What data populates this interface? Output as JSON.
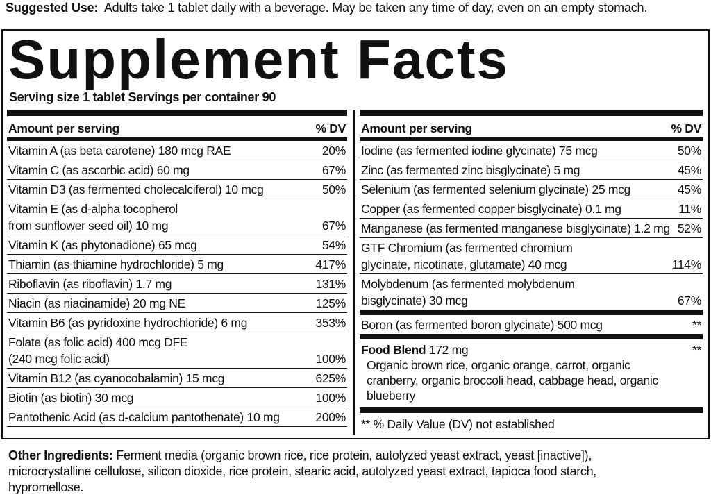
{
  "suggested_use": {
    "label": "Suggested Use:",
    "text": "Adults take 1 tablet daily with a beverage. May be taken any time of day, even on an empty stomach."
  },
  "title": "Supplement Facts",
  "serving": "Serving size 1 tablet  Servings per container 90",
  "left": {
    "header": {
      "amount": "Amount per serving",
      "dv": "% DV"
    },
    "rows": [
      {
        "name": [
          "Vitamin A (as beta carotene) 180 mcg RAE"
        ],
        "dv": "20%"
      },
      {
        "name": [
          "Vitamin C (as ascorbic acid) 60 mg"
        ],
        "dv": "67%"
      },
      {
        "name": [
          "Vitamin D3 (as fermented cholecalciferol) 10 mcg"
        ],
        "dv": "50%"
      },
      {
        "name": [
          "Vitamin E (as d-alpha tocopherol",
          "from sunflower seed oil) 10 mg"
        ],
        "dv": "67%"
      },
      {
        "name": [
          "Vitamin K (as phytonadione) 65 mcg"
        ],
        "dv": "54%"
      },
      {
        "name": [
          "Thiamin (as thiamine hydrochloride) 5 mg"
        ],
        "dv": "417%"
      },
      {
        "name": [
          "Riboflavin (as riboflavin) 1.7 mg"
        ],
        "dv": "131%"
      },
      {
        "name": [
          "Niacin (as niacinamide) 20 mg NE"
        ],
        "dv": "125%"
      },
      {
        "name": [
          "Vitamin B6 (as pyridoxine hydrochloride) 6 mg"
        ],
        "dv": "353%"
      },
      {
        "name": [
          "Folate (as folic acid) 400 mcg DFE",
          "(240 mcg folic acid)"
        ],
        "dv": "100%"
      },
      {
        "name": [
          "Vitamin B12 (as cyanocobalamin) 15 mcg"
        ],
        "dv": "625%"
      },
      {
        "name": [
          "Biotin (as biotin) 30 mcg"
        ],
        "dv": "100%"
      },
      {
        "name": [
          "Pantothenic Acid (as d-calcium pantothenate) 10 mg"
        ],
        "dv": "200%"
      }
    ]
  },
  "right": {
    "header": {
      "amount": "Amount per serving",
      "dv": "% DV"
    },
    "rows": [
      {
        "name": [
          "Iodine (as fermented iodine glycinate) 75 mcg"
        ],
        "dv": "50%"
      },
      {
        "name": [
          "Zinc (as fermented zinc bisglycinate) 5 mg"
        ],
        "dv": "45%"
      },
      {
        "name": [
          "Selenium (as fermented selenium glycinate) 25 mcg"
        ],
        "dv": "45%"
      },
      {
        "name": [
          "Copper (as fermented copper bisglycinate) 0.1 mg"
        ],
        "dv": "11%"
      },
      {
        "name": [
          "Manganese (as fermented manganese bisglycinate) 1.2 mg"
        ],
        "dv": "52%"
      },
      {
        "name": [
          "GTF Chromium (as fermented chromium",
          "glycinate, nicotinate, glutamate) 40 mcg"
        ],
        "dv": "114%"
      },
      {
        "name": [
          "Molybdenum (as fermented molybdenum",
          "bisglycinate) 30 mcg"
        ],
        "dv": "67%"
      }
    ],
    "boron": {
      "name": "Boron (as fermented boron glycinate) 500 mcg",
      "dv": "**"
    },
    "food_blend": {
      "label": "Food Blend",
      "amount": "172 mg",
      "dv": "**",
      "description": [
        "Organic brown rice, organic orange, carrot, organic",
        "cranberry, organic broccoli head, cabbage head, organic",
        "blueberry"
      ]
    },
    "footnote": "** % Daily Value (DV) not established"
  },
  "other_ingredients": {
    "label": "Other Ingredients:",
    "text": [
      "Ferment media (organic brown rice, rice protein, autolyzed yeast extract, yeast [inactive]),",
      "microcrystalline cellulose, silicon dioxide, rice protein, stearic acid, autolyzed yeast extract, tapioca food starch,",
      "hypromellose."
    ]
  }
}
